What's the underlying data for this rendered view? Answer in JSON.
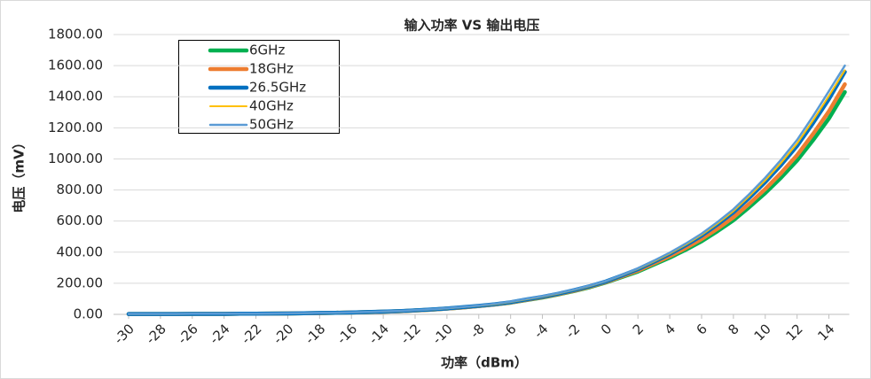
{
  "chart_data": {
    "type": "line",
    "title": "输入功率 VS 输出电压",
    "x_label": "功率（dBm）",
    "y_label": "电压（mV）",
    "x": [
      -30,
      -29,
      -28,
      -27,
      -26,
      -25,
      -24,
      -23,
      -22,
      -21,
      -20,
      -19,
      -18,
      -17,
      -16,
      -15,
      -14,
      -13,
      -12,
      -11,
      -10,
      -9,
      -8,
      -7,
      -6,
      -5,
      -4,
      -3,
      -2,
      -1,
      0,
      1,
      2,
      3,
      4,
      5,
      6,
      7,
      8,
      9,
      10,
      11,
      12,
      13,
      14,
      15
    ],
    "xlim": [
      -30,
      15
    ],
    "xticks": [
      -30,
      -28,
      -26,
      -24,
      -22,
      -20,
      -18,
      -16,
      -14,
      -12,
      -10,
      -8,
      -6,
      -4,
      -2,
      0,
      2,
      4,
      6,
      8,
      10,
      12,
      14
    ],
    "ylim": [
      0,
      1800
    ],
    "yticks": [
      {
        "value": 0,
        "label": "0.00"
      },
      {
        "value": 200,
        "label": "200.00"
      },
      {
        "value": 400,
        "label": "400.00"
      },
      {
        "value": 600,
        "label": "600.00"
      },
      {
        "value": 800,
        "label": "800.00"
      },
      {
        "value": 1000,
        "label": "1000.00"
      },
      {
        "value": 1200,
        "label": "1200.00"
      },
      {
        "value": 1400,
        "label": "1400.00"
      },
      {
        "value": 1600,
        "label": "1600.00"
      },
      {
        "value": 1800,
        "label": "1800.00"
      }
    ],
    "grid": true,
    "series": [
      {
        "name": "6GHz",
        "color": "#00b050",
        "values": [
          2,
          2,
          2,
          2,
          3,
          3,
          3,
          4,
          4,
          5,
          6,
          7,
          8,
          10,
          12,
          14,
          17,
          20,
          25,
          30,
          37,
          44,
          53,
          63,
          75,
          92,
          108,
          128,
          150,
          175,
          205,
          240,
          275,
          320,
          365,
          415,
          470,
          535,
          605,
          690,
          780,
          880,
          990,
          1120,
          1260,
          1430
        ]
      },
      {
        "name": "18GHz",
        "color": "#ed7d31",
        "values": [
          2,
          2,
          2,
          2,
          3,
          3,
          3,
          4,
          4,
          5,
          6,
          7,
          8,
          10,
          12,
          14,
          17,
          20,
          25,
          30,
          37,
          44,
          53,
          63,
          76,
          93,
          110,
          130,
          152,
          178,
          208,
          244,
          281,
          327,
          374,
          426,
          484,
          551,
          624,
          712,
          806,
          910,
          1024,
          1160,
          1306,
          1480
        ]
      },
      {
        "name": "26.5GHz",
        "color": "#0070c0",
        "values": [
          2,
          2,
          2,
          2,
          3,
          3,
          3,
          4,
          4,
          5,
          6,
          7,
          9,
          10,
          12,
          15,
          18,
          21,
          26,
          31,
          38,
          46,
          55,
          65,
          78,
          96,
          113,
          133,
          156,
          182,
          212,
          250,
          290,
          338,
          388,
          444,
          506,
          578,
          656,
          750,
          851,
          962,
          1084,
          1230,
          1385,
          1560
        ]
      },
      {
        "name": "40GHz",
        "color": "#ffc000",
        "values": [
          2,
          2,
          2,
          2,
          3,
          3,
          3,
          4,
          4,
          5,
          6,
          7,
          9,
          10,
          12,
          15,
          18,
          21,
          26,
          31,
          38,
          46,
          55,
          65,
          79,
          97,
          114,
          134,
          157,
          183,
          213,
          251,
          292,
          340,
          391,
          448,
          511,
          584,
          664,
          760,
          862,
          975,
          1099,
          1247,
          1405,
          1570
        ]
      },
      {
        "name": "50GHz",
        "color": "#5b9bd5",
        "values": [
          3,
          3,
          3,
          3,
          4,
          4,
          4,
          5,
          5,
          6,
          7,
          8,
          10,
          11,
          13,
          16,
          19,
          22,
          27,
          33,
          40,
          48,
          57,
          68,
          82,
          100,
          117,
          137,
          160,
          186,
          215,
          254,
          296,
          345,
          397,
          455,
          519,
          594,
          676,
          774,
          879,
          995,
          1122,
          1274,
          1436,
          1600
        ]
      }
    ]
  }
}
